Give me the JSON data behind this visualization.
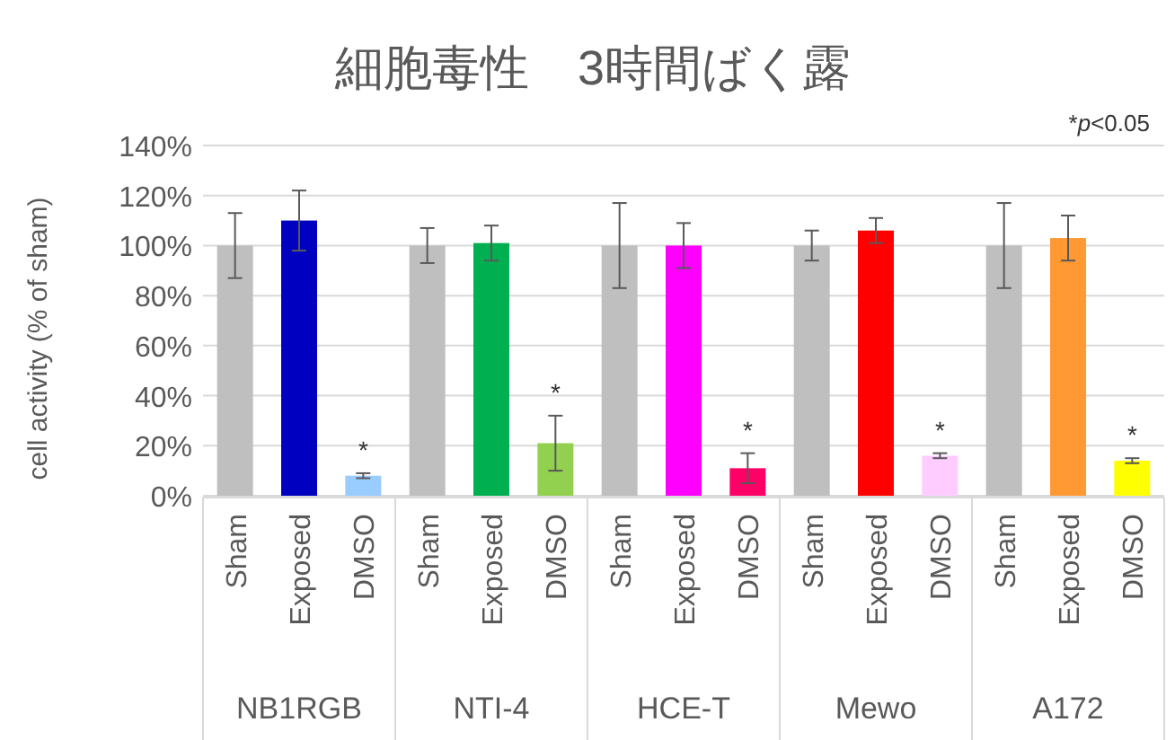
{
  "chart_data": {
    "type": "bar",
    "title": "細胞毒性　3時間ばく露",
    "ylabel": "cell activity (% of sham)",
    "categories": [
      "Sham",
      "Exposed",
      "DMSO",
      "Sham",
      "Exposed",
      "DMSO",
      "Sham",
      "Exposed",
      "DMSO",
      "Sham",
      "Exposed",
      "DMSO",
      "Sham",
      "Exposed",
      "DMSO"
    ],
    "values": [
      100,
      110,
      8,
      100,
      101,
      21,
      100,
      100,
      11,
      100,
      106,
      16,
      100,
      103,
      14
    ],
    "errors": [
      13,
      12,
      1,
      7,
      7,
      11,
      17,
      9,
      6,
      6,
      5,
      1,
      17,
      9,
      1
    ],
    "colors": [
      "#bfbfbf",
      "#0000c0",
      "#99ccff",
      "#bfbfbf",
      "#00b050",
      "#92d050",
      "#bfbfbf",
      "#ff00ff",
      "#ff0066",
      "#bfbfbf",
      "#ff0000",
      "#ffccff",
      "#bfbfbf",
      "#ff9933",
      "#ffff00"
    ],
    "value_labels": [
      null,
      null,
      "*",
      null,
      null,
      "*",
      null,
      null,
      "*",
      null,
      null,
      "*",
      null,
      null,
      "*"
    ],
    "annotations": [
      "*p<0.05",
      "NB1RGB",
      "NTI-4",
      "HCE-T",
      "Mewo",
      "A172"
    ],
    "ylim": [
      0,
      140
    ],
    "yticks": [
      {
        "value": 0,
        "label": "0%"
      },
      {
        "value": 20,
        "label": "20%"
      },
      {
        "value": 40,
        "label": "40%"
      },
      {
        "value": 60,
        "label": "60%"
      },
      {
        "value": 80,
        "label": "80%"
      },
      {
        "value": 100,
        "label": "100%"
      },
      {
        "value": 120,
        "label": "120%"
      },
      {
        "value": 140,
        "label": "140%"
      }
    ],
    "grid": "y"
  }
}
